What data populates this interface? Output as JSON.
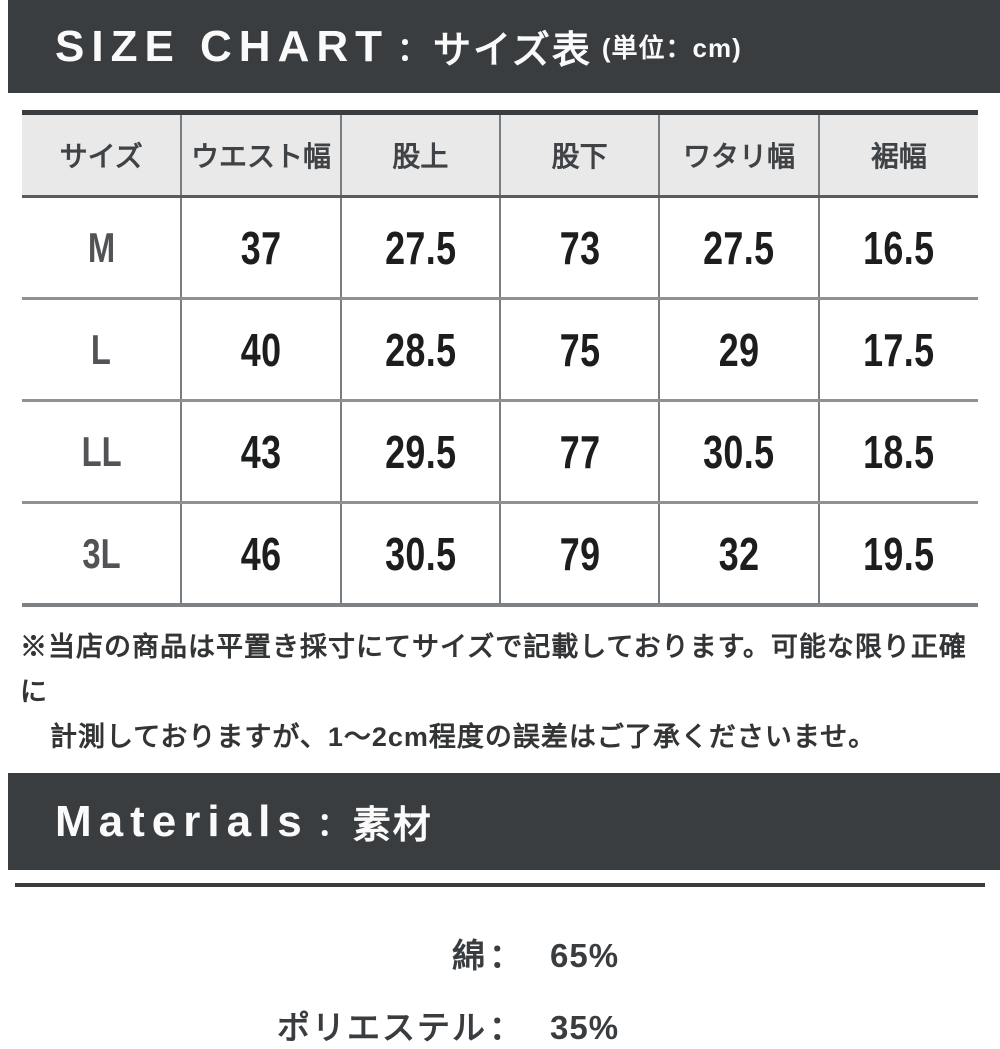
{
  "size_chart": {
    "title_en": "SIZE CHART",
    "separator": "：",
    "title_ja": "サイズ表",
    "unit": "(単位：cm)"
  },
  "table": {
    "headers": [
      "サイズ",
      "ウエスト幅",
      "股上",
      "股下",
      "ワタリ幅",
      "裾幅"
    ],
    "rows": [
      {
        "size": "M",
        "values": [
          "37",
          "27.5",
          "73",
          "27.5",
          "16.5"
        ]
      },
      {
        "size": "L",
        "values": [
          "40",
          "28.5",
          "75",
          "29",
          "17.5"
        ]
      },
      {
        "size": "LL",
        "values": [
          "43",
          "29.5",
          "77",
          "30.5",
          "18.5"
        ]
      },
      {
        "size": "3L",
        "values": [
          "46",
          "30.5",
          "79",
          "32",
          "19.5"
        ]
      }
    ]
  },
  "note": {
    "line1": "※当店の商品は平置き採寸にてサイズで記載しております。可能な限り正確に",
    "line2": "計測しておりますが、1〜2cm程度の誤差はご了承くださいませ。"
  },
  "materials": {
    "title_en": "Materials",
    "separator": "：",
    "title_ja": "素材",
    "colon": "：",
    "items": [
      {
        "label": "綿",
        "value": "65%"
      },
      {
        "label": "ポリエステル",
        "value": "35%"
      }
    ]
  },
  "colors": {
    "bar_background": "#3a3d40",
    "bar_text": "#ffffff",
    "table_header_background": "#e9e9e9",
    "number_text": "#1c1d1f"
  }
}
